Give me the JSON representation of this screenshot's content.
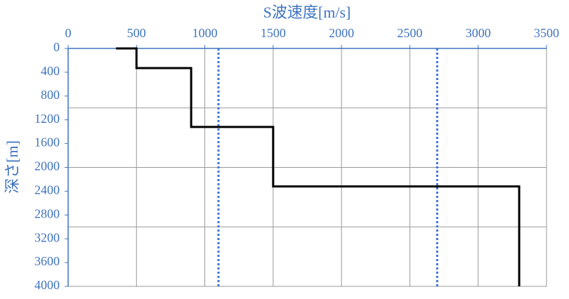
{
  "chart_data": {
    "type": "line",
    "title": "S波速度[m/s]",
    "y_label": "深さ[m]",
    "xlim": [
      0,
      3500
    ],
    "xticks": [
      0,
      500,
      1000,
      1500,
      2000,
      2500,
      3000,
      3500
    ],
    "ylim": [
      0,
      4000
    ],
    "yticks": [
      0,
      400,
      800,
      1200,
      1600,
      2000,
      2400,
      2800,
      3200,
      3600,
      4000
    ],
    "ygrid": [
      1000,
      2000,
      3000,
      4000
    ],
    "y_inverted": true,
    "grid": true,
    "series": [
      {
        "color": "#000000",
        "x": [
          350,
          500,
          500,
          900,
          900,
          1500,
          1500,
          3300,
          3300
        ],
        "values": [
          0,
          0,
          330,
          330,
          1320,
          1320,
          2320,
          2320,
          4000
        ]
      }
    ],
    "vlines": {
      "color": "#3f74d8",
      "values": [
        1100,
        2700
      ]
    }
  }
}
